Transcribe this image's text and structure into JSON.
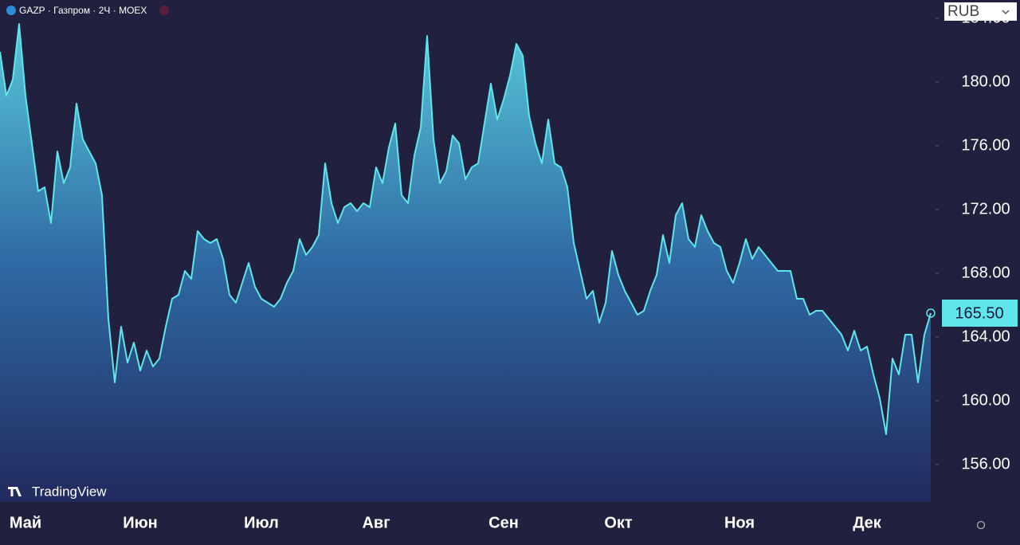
{
  "chart_data": {
    "type": "area",
    "title": "GAZP · Газпром · 2Ч · MOEX",
    "currency": "RUB",
    "brand": "TradingView",
    "last_label": "165.50",
    "color": "#5ee6ea",
    "categories": [
      null,
      null,
      null,
      null,
      "Май",
      null,
      null,
      null,
      null,
      null,
      null,
      null,
      null,
      null,
      null,
      null,
      null,
      null,
      null,
      null,
      null,
      null,
      "Июн",
      null,
      null,
      null,
      null,
      null,
      null,
      null,
      null,
      null,
      null,
      null,
      null,
      null,
      null,
      null,
      null,
      null,
      null,
      "Июл",
      null,
      null,
      null,
      null,
      null,
      null,
      null,
      null,
      null,
      null,
      null,
      null,
      null,
      null,
      null,
      null,
      null,
      "Авг",
      null,
      null,
      null,
      null,
      null,
      null,
      null,
      null,
      null,
      null,
      null,
      null,
      null,
      null,
      null,
      null,
      null,
      null,
      null,
      "Сен",
      null,
      null,
      null,
      null,
      null,
      null,
      null,
      null,
      null,
      null,
      null,
      null,
      null,
      null,
      null,
      null,
      null,
      "Окт",
      null,
      null,
      null,
      null,
      null,
      null,
      null,
      null,
      null,
      null,
      null,
      null,
      null,
      null,
      null,
      null,
      null,
      null,
      "Ноя",
      null,
      null,
      null,
      null,
      null,
      null,
      null,
      null,
      null,
      null,
      null,
      null,
      null,
      null,
      null,
      null,
      null,
      null,
      null,
      "Дек",
      null,
      null,
      null,
      null,
      null,
      null,
      null,
      null,
      null,
      null
    ],
    "values": [
      181.9,
      179.15,
      180.15,
      183.65,
      179.15,
      176.15,
      173.15,
      173.4,
      171.15,
      175.65,
      173.65,
      174.65,
      178.65,
      176.4,
      175.65,
      174.9,
      172.9,
      165.15,
      161.15,
      164.65,
      162.4,
      163.65,
      161.9,
      163.15,
      162.15,
      162.65,
      164.65,
      166.4,
      166.65,
      168.15,
      167.65,
      170.65,
      170.15,
      169.9,
      170.15,
      168.9,
      166.65,
      166.15,
      167.4,
      168.65,
      167.15,
      166.4,
      166.15,
      165.9,
      166.4,
      167.4,
      168.15,
      170.15,
      169.15,
      169.65,
      170.4,
      174.9,
      172.4,
      171.15,
      172.15,
      172.4,
      171.9,
      172.4,
      172.15,
      174.65,
      173.65,
      175.9,
      177.4,
      172.9,
      172.4,
      175.4,
      177.15,
      182.9,
      176.4,
      173.65,
      174.4,
      176.65,
      176.15,
      173.9,
      174.65,
      174.9,
      177.4,
      179.9,
      177.65,
      178.9,
      180.4,
      182.4,
      181.65,
      177.9,
      176.15,
      174.9,
      177.65,
      174.9,
      174.65,
      173.4,
      169.9,
      168.15,
      166.4,
      166.9,
      164.9,
      166.15,
      169.4,
      167.9,
      166.9,
      166.15,
      165.4,
      165.65,
      166.9,
      167.9,
      170.4,
      168.65,
      171.65,
      172.4,
      170.15,
      169.65,
      171.65,
      170.65,
      169.9,
      169.65,
      168.15,
      167.4,
      168.65,
      170.15,
      168.9,
      169.65,
      169.15,
      168.65,
      168.15,
      168.15,
      168.15,
      166.4,
      166.4,
      165.4,
      165.65,
      165.65,
      165.15,
      164.65,
      164.15,
      163.15,
      164.4,
      163.15,
      163.4,
      161.65,
      160.15,
      157.9,
      162.65,
      161.65,
      164.15,
      164.15,
      161.15,
      164.15,
      165.5
    ],
    "ylim": [
      153.65,
      185.15
    ],
    "yticks": [
      {
        "value": 156,
        "label": "156.00"
      },
      {
        "value": 160,
        "label": "160.00"
      },
      {
        "value": 164,
        "label": "164.00"
      },
      {
        "value": 168,
        "label": "168.00"
      },
      {
        "value": 172,
        "label": "172.00"
      },
      {
        "value": 176,
        "label": "176.00"
      },
      {
        "value": 180,
        "label": "180.00"
      },
      {
        "value": 184,
        "label": "184.00"
      }
    ],
    "grid": false
  }
}
